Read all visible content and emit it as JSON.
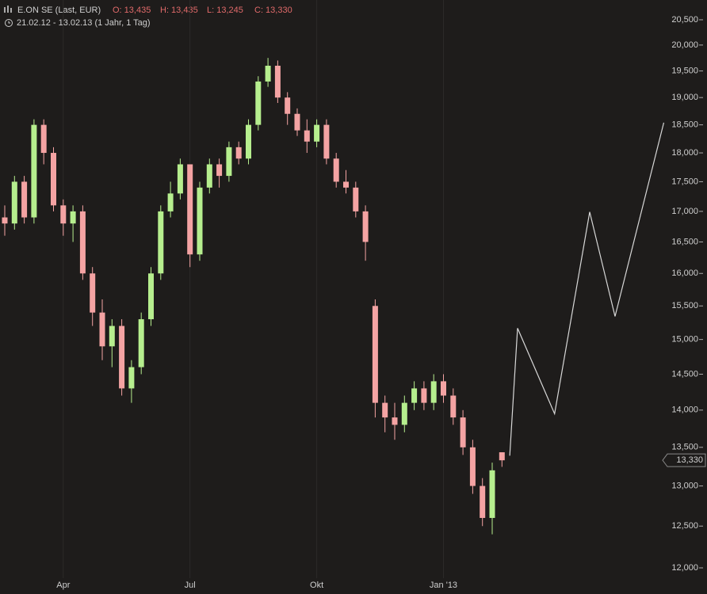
{
  "header": {
    "instrument": "E.ON SE (Last, EUR)",
    "ohlc": [
      "O: 13,435",
      "H: 13,435",
      "L: 13,245",
      "C: 13,330"
    ],
    "range": "21.02.12 - 13.02.13 (1 Jahr, 1 Tag)"
  },
  "chart_data": {
    "type": "candlestick",
    "categories": [
      null,
      null,
      null,
      null,
      null,
      null,
      "Apr",
      null,
      null,
      null,
      null,
      null,
      null,
      null,
      null,
      null,
      null,
      null,
      null,
      "Jul",
      null,
      null,
      null,
      null,
      null,
      null,
      null,
      null,
      null,
      null,
      null,
      null,
      "Okt",
      null,
      null,
      null,
      null,
      null,
      null,
      null,
      null,
      null,
      null,
      null,
      null,
      "Jan '13",
      null,
      null,
      null,
      null,
      null,
      null
    ],
    "open": [
      16900,
      16800,
      17500,
      16900,
      18500,
      18000,
      17100,
      16800,
      17000,
      16000,
      15400,
      14900,
      15200,
      14300,
      14600,
      15300,
      16000,
      17000,
      17300,
      17800,
      16300,
      17400,
      17800,
      17600,
      18100,
      17900,
      18500,
      19300,
      19600,
      19000,
      18700,
      18400,
      18200,
      18500,
      17900,
      17500,
      17400,
      17000,
      15500,
      14100,
      13900,
      13800,
      14100,
      14300,
      14100,
      14400,
      14200,
      13900,
      13500,
      13000,
      12600,
      13435
    ],
    "high": [
      17100,
      17600,
      17600,
      18600,
      18600,
      18100,
      17200,
      17100,
      17100,
      16100,
      15600,
      15300,
      15300,
      14700,
      15400,
      16100,
      17100,
      17500,
      17900,
      17800,
      17500,
      17900,
      17900,
      18200,
      18200,
      18600,
      19400,
      19750,
      19700,
      19100,
      18800,
      18600,
      18600,
      18600,
      18000,
      17700,
      17500,
      17100,
      15600,
      14200,
      14100,
      14200,
      14400,
      14400,
      14500,
      14500,
      14300,
      14000,
      13600,
      13100,
      13300,
      13435
    ],
    "low": [
      16600,
      16700,
      16800,
      16800,
      17800,
      17000,
      16600,
      16500,
      15900,
      15200,
      14700,
      14600,
      14200,
      14100,
      14500,
      15200,
      15900,
      16900,
      17200,
      16100,
      16200,
      17300,
      17400,
      17500,
      17800,
      17800,
      18400,
      19200,
      18900,
      18500,
      18300,
      18000,
      18100,
      17800,
      17400,
      17300,
      16900,
      16200,
      13900,
      13700,
      13600,
      13700,
      14000,
      14000,
      14000,
      14100,
      13800,
      13400,
      12900,
      12500,
      12400,
      13245
    ],
    "close": [
      16800,
      17500,
      16900,
      18500,
      18000,
      17100,
      16800,
      17000,
      16000,
      15400,
      14900,
      15200,
      14300,
      14600,
      15300,
      16000,
      17000,
      17300,
      17800,
      16300,
      17400,
      17800,
      17600,
      18100,
      17900,
      18500,
      19300,
      19600,
      19000,
      18700,
      18400,
      18200,
      18500,
      17900,
      17500,
      17400,
      17000,
      16500,
      14100,
      13900,
      13800,
      14100,
      14300,
      14100,
      14400,
      14200,
      13900,
      13500,
      13000,
      12600,
      13200,
      13330
    ],
    "up_color": "#b6ee8e",
    "down_color": "#f4a3a3",
    "projection": {
      "x": [
        51.8,
        52.6,
        56.4,
        60,
        62.6,
        67.6
      ],
      "values": [
        13390,
        15166,
        13950,
        16990,
        15342,
        18540
      ],
      "color": "#d8d8d8"
    },
    "current_price": {
      "value": 13330,
      "label": "13,330"
    },
    "ylim": [
      11880,
      20900
    ],
    "log_scale": true,
    "yticks": [
      {
        "value": 12000,
        "label": "12,000"
      },
      {
        "value": 12500,
        "label": "12,500"
      },
      {
        "value": 13000,
        "label": "13,000"
      },
      {
        "value": 13500,
        "label": "13,500"
      },
      {
        "value": 14000,
        "label": "14,000"
      },
      {
        "value": 14500,
        "label": "14,500"
      },
      {
        "value": 15000,
        "label": "15,000"
      },
      {
        "value": 15500,
        "label": "15,500"
      },
      {
        "value": 16000,
        "label": "16,000"
      },
      {
        "value": 16500,
        "label": "16,500"
      },
      {
        "value": 17000,
        "label": "17,000"
      },
      {
        "value": 17500,
        "label": "17,500"
      },
      {
        "value": 18000,
        "label": "18,000"
      },
      {
        "value": 18500,
        "label": "18,500"
      },
      {
        "value": 19000,
        "label": "19,000"
      },
      {
        "value": 19500,
        "label": "19,500"
      },
      {
        "value": 20000,
        "label": "20,000"
      },
      {
        "value": 20500,
        "label": "20,500"
      }
    ],
    "grid": true
  }
}
